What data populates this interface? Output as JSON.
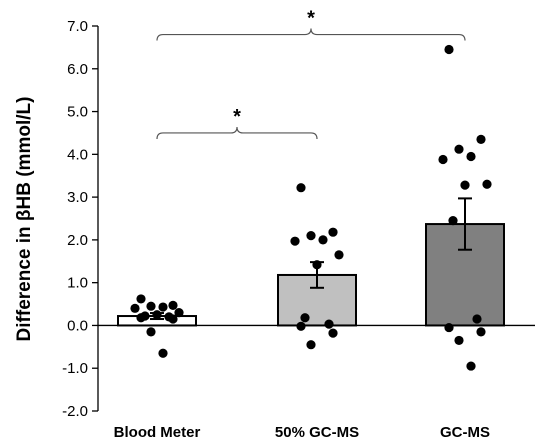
{
  "chart_data": {
    "type": "bar",
    "ylabel": "Difference in βHB (mmol/L)",
    "ylim": [
      -2.0,
      7.0
    ],
    "yticks": [
      -2.0,
      -1.0,
      0.0,
      1.0,
      2.0,
      3.0,
      4.0,
      5.0,
      6.0,
      7.0
    ],
    "ytick_labels": [
      "-2.0",
      "-1.0",
      "0.0",
      "1.0",
      "2.0",
      "3.0",
      "4.0",
      "5.0",
      "6.0",
      "7.0"
    ],
    "categories": [
      "Blood Meter",
      "50% GC-MS",
      "GC-MS"
    ],
    "values": [
      0.22,
      1.18,
      2.37
    ],
    "errors": [
      0.07,
      0.3,
      0.6
    ],
    "bar_colors": [
      "#ffffff",
      "#c0c0c0",
      "#808080"
    ],
    "points": [
      [
        0.62,
        0.47,
        0.45,
        0.43,
        0.4,
        0.3,
        0.25,
        0.22,
        0.2,
        0.18,
        0.15,
        -0.15,
        -0.65
      ],
      [
        3.22,
        2.18,
        2.1,
        2.0,
        1.97,
        1.65,
        1.42,
        0.18,
        0.03,
        -0.02,
        -0.18,
        -0.45
      ],
      [
        6.45,
        4.35,
        4.12,
        3.95,
        3.88,
        3.3,
        3.28,
        2.45,
        0.15,
        -0.05,
        -0.15,
        -0.35,
        -0.95
      ]
    ],
    "significance": [
      {
        "from": 0,
        "to": 1,
        "label": "*",
        "y": 4.5
      },
      {
        "from": 0,
        "to": 2,
        "label": "*",
        "y": 6.8
      }
    ],
    "grid": false,
    "legend": "none"
  }
}
